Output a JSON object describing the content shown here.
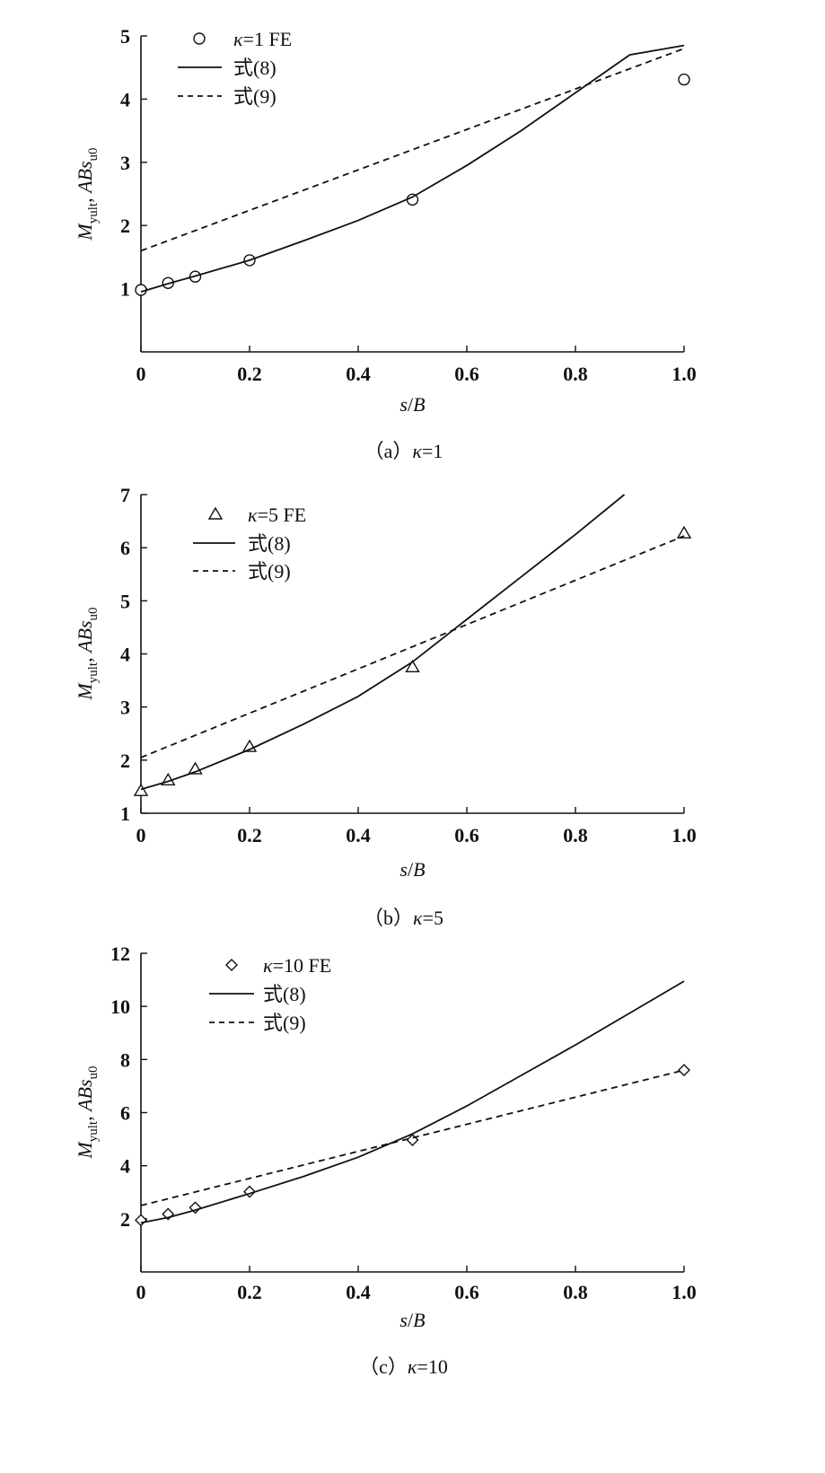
{
  "chart_data": [
    {
      "type": "line",
      "caption": "（a）κ=1",
      "xlabel": "s/B",
      "ylabel": "Myult, ABsu0",
      "xlim": [
        0,
        1.0
      ],
      "ylim": [
        0,
        5
      ],
      "xticks": [
        0,
        0.2,
        0.4,
        0.6,
        0.8,
        1.0
      ],
      "xtick_labels": [
        "0",
        "0.2",
        "0.4",
        "0.6",
        "0.8",
        "1.0"
      ],
      "yticks": [
        1,
        2,
        3,
        4,
        5
      ],
      "ytick_labels": [
        "1",
        "2",
        "3",
        "4",
        "5"
      ],
      "legend_position": "top-left",
      "series": [
        {
          "name": "κ=1 FE",
          "style": "marker",
          "marker": "circle",
          "x": [
            0,
            0.05,
            0.1,
            0.2,
            0.5,
            1.0
          ],
          "y": [
            0.98,
            1.09,
            1.19,
            1.45,
            2.41,
            4.31
          ]
        },
        {
          "name": "式(8)",
          "style": "solid",
          "x": [
            0,
            0.05,
            0.1,
            0.2,
            0.3,
            0.4,
            0.5,
            0.6,
            0.7,
            0.8,
            0.9,
            1.0
          ],
          "y": [
            0.95,
            1.08,
            1.2,
            1.45,
            1.76,
            2.08,
            2.45,
            2.95,
            3.5,
            4.1,
            4.7,
            4.85
          ]
        },
        {
          "name": "式(9)",
          "style": "dashed",
          "x": [
            0,
            1.0
          ],
          "y": [
            1.6,
            4.8
          ]
        }
      ]
    },
    {
      "type": "line",
      "caption": "（b）κ=5",
      "xlabel": "s/B",
      "ylabel": "Myult, ABsu0",
      "xlim": [
        0,
        1.0
      ],
      "ylim": [
        1,
        7
      ],
      "xticks": [
        0,
        0.2,
        0.4,
        0.6,
        0.8,
        1.0
      ],
      "xtick_labels": [
        "0",
        "0.2",
        "0.4",
        "0.6",
        "0.8",
        "1.0"
      ],
      "yticks": [
        1,
        2,
        3,
        4,
        5,
        6,
        7
      ],
      "ytick_labels": [
        "1",
        "2",
        "3",
        "4",
        "5",
        "6",
        "7"
      ],
      "legend_position": "top-left",
      "series": [
        {
          "name": "κ=5 FE",
          "style": "marker",
          "marker": "triangle",
          "x": [
            0,
            0.05,
            0.1,
            0.2,
            0.5,
            1.0
          ],
          "y": [
            1.42,
            1.62,
            1.83,
            2.25,
            3.75,
            6.27
          ]
        },
        {
          "name": "式(8)",
          "style": "solid",
          "x": [
            0,
            0.05,
            0.1,
            0.2,
            0.3,
            0.4,
            0.5,
            0.6,
            0.7,
            0.8,
            0.89
          ],
          "y": [
            1.45,
            1.6,
            1.78,
            2.2,
            2.68,
            3.2,
            3.85,
            4.65,
            5.45,
            6.25,
            7.0
          ]
        },
        {
          "name": "式(9)",
          "style": "dashed",
          "x": [
            0,
            1.0
          ],
          "y": [
            2.05,
            6.22
          ]
        }
      ]
    },
    {
      "type": "line",
      "caption": "（c）κ=10",
      "xlabel": "s/B",
      "ylabel": "Myult, ABsu0",
      "xlim": [
        0,
        1.0
      ],
      "ylim": [
        0,
        12
      ],
      "xticks": [
        0,
        0.2,
        0.4,
        0.6,
        0.8,
        1.0
      ],
      "xtick_labels": [
        "0",
        "0.2",
        "0.4",
        "0.6",
        "0.8",
        "1.0"
      ],
      "yticks": [
        2,
        4,
        6,
        8,
        10,
        12
      ],
      "ytick_labels": [
        "2",
        "4",
        "6",
        "8",
        "10",
        "12"
      ],
      "legend_position": "top-left",
      "series": [
        {
          "name": "κ=10 FE",
          "style": "marker",
          "marker": "diamond",
          "x": [
            0,
            0.05,
            0.1,
            0.2,
            0.5,
            1.0
          ],
          "y": [
            1.95,
            2.18,
            2.42,
            3.02,
            4.97,
            7.6
          ]
        },
        {
          "name": "式(8)",
          "style": "solid",
          "x": [
            0,
            0.05,
            0.1,
            0.2,
            0.3,
            0.4,
            0.5,
            0.6,
            0.7,
            0.8,
            0.9,
            1.0
          ],
          "y": [
            1.85,
            2.05,
            2.33,
            2.95,
            3.6,
            4.32,
            5.2,
            6.25,
            7.4,
            8.55,
            9.75,
            10.95
          ]
        },
        {
          "name": "式(9)",
          "style": "dashed",
          "x": [
            0,
            1.0
          ],
          "y": [
            2.5,
            7.6
          ]
        }
      ]
    }
  ]
}
